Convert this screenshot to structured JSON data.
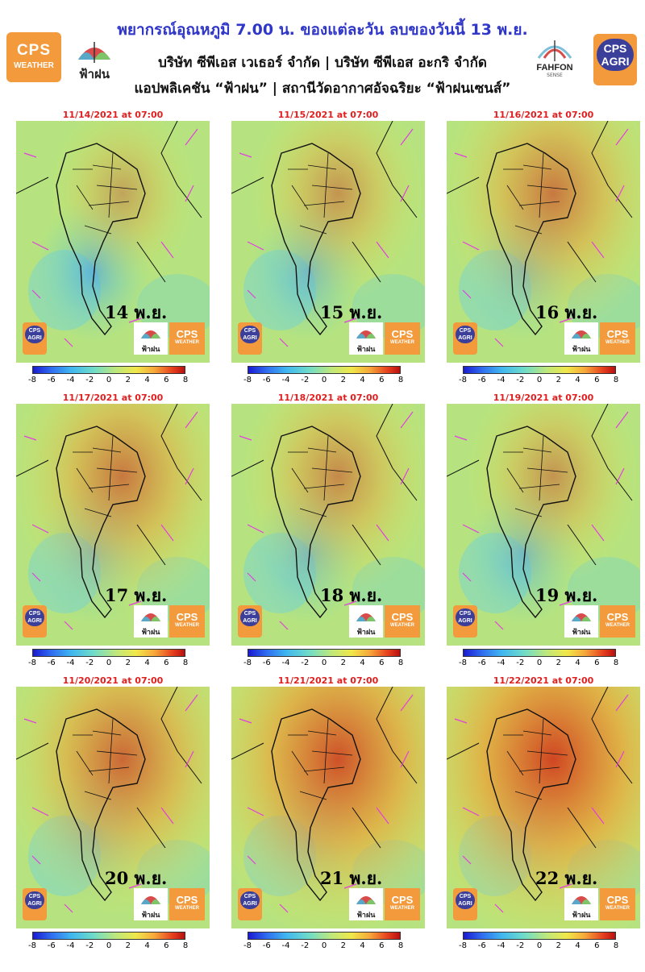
{
  "header": {
    "title": "พยากรณ์อุณหภูมิ 7.00 น. ของแต่ละวัน ลบของวันนี้ 13 พ.ย.",
    "line1": "บริษัท ซีพีเอส เวเธอร์ จำกัด | บริษัท ซีพีเอส อะกริ จำกัด",
    "line2": "แอปพลิเคชัน “ฟ้าฝน” | สถานีวัดอากาศอัจฉริยะ “ฟ้าฝนเซนส์”",
    "logo_cps_weather": {
      "big": "CPS",
      "small": "WEATHER"
    },
    "logo_fahfon": "ฟ้าฝน",
    "logo_fahfon_sense": {
      "name": "FAHFON",
      "sub": "SENSE"
    },
    "logo_cps_agri": "CPS AGRI"
  },
  "colorbar": {
    "ticks": [
      "-8",
      "-6",
      "-4",
      "-2",
      "0",
      "2",
      "4",
      "6",
      "8"
    ],
    "colors": [
      "#1a1ad0",
      "#3fb6f0",
      "#bfe87a",
      "#f0e84a",
      "#f7a83a",
      "#b81010"
    ]
  },
  "panel_logos": {
    "agri": "CPS AGRI",
    "fahfon": "ฟ้าฝน",
    "cps": "CPS",
    "cps_sub": "WEATHER"
  },
  "panels": [
    {
      "date": "11/14/2021 at 07:00",
      "day": "14 พ.ย.",
      "warmth": 0.15
    },
    {
      "date": "11/15/2021 at 07:00",
      "day": "15 พ.ย.",
      "warmth": 0.3
    },
    {
      "date": "11/16/2021 at 07:00",
      "day": "16 พ.ย.",
      "warmth": 0.55
    },
    {
      "date": "11/17/2021 at 07:00",
      "day": "17 พ.ย.",
      "warmth": 0.55
    },
    {
      "date": "11/18/2021 at 07:00",
      "day": "18 พ.ย.",
      "warmth": 0.4
    },
    {
      "date": "11/19/2021 at 07:00",
      "day": "19 พ.ย.",
      "warmth": 0.3
    },
    {
      "date": "11/20/2021 at 07:00",
      "day": "20 พ.ย.",
      "warmth": 0.7
    },
    {
      "date": "11/21/2021 at 07:00",
      "day": "21 พ.ย.",
      "warmth": 0.9
    },
    {
      "date": "11/22/2021 at 07:00",
      "day": "22 พ.ย.",
      "warmth": 1.0
    }
  ]
}
